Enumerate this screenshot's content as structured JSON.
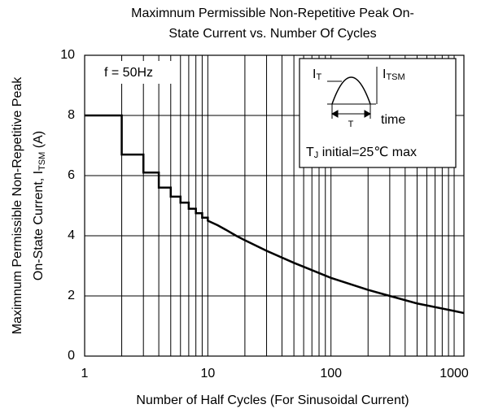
{
  "chart_data": {
    "type": "line",
    "title": [
      "Maximnum Permissible Non-Repetitive Peak On-",
      "State Current vs. Number Of Cycles"
    ],
    "xlabel": "Number of Half Cycles (For Sinusoidal Current)",
    "ylabel": [
      "Maximnum Permissible Non-Repetitive Peak",
      "On-State Current, I",
      "TSM",
      " (A)"
    ],
    "xscale": "log",
    "xlim": [
      1,
      1200
    ],
    "ylim": [
      0,
      10
    ],
    "xticks": [
      1,
      10,
      100,
      1000
    ],
    "xminorticks": [
      2,
      3,
      4,
      5,
      6,
      7,
      8,
      9,
      20,
      30,
      40,
      50,
      60,
      70,
      80,
      90,
      200,
      300,
      400,
      500,
      600,
      700,
      800,
      900
    ],
    "yticks": [
      0,
      2,
      4,
      6,
      8,
      10
    ],
    "grid": true,
    "color": "#000000",
    "x": [
      1,
      2,
      2,
      3,
      3,
      4,
      4,
      5,
      5,
      6,
      6,
      7,
      7,
      8,
      8,
      9,
      9,
      10,
      10,
      12,
      14,
      17,
      20,
      30,
      50,
      100,
      200,
      300,
      500,
      1000,
      1200
    ],
    "values": [
      8,
      8,
      6.7,
      6.7,
      6.1,
      6.1,
      5.6,
      5.6,
      5.3,
      5.3,
      5.1,
      5.1,
      4.9,
      4.9,
      4.75,
      4.75,
      4.6,
      4.6,
      4.5,
      4.35,
      4.2,
      4.0,
      3.85,
      3.5,
      3.1,
      2.6,
      2.2,
      2.0,
      1.75,
      1.5,
      1.43
    ],
    "annotations": {
      "frequency": "f = 50Hz",
      "it": [
        "I",
        "T"
      ],
      "itsm": [
        "I",
        "TSM"
      ],
      "period": "T",
      "time": "time",
      "tj": [
        "T",
        "J",
        " initial=25℃ max"
      ]
    }
  }
}
